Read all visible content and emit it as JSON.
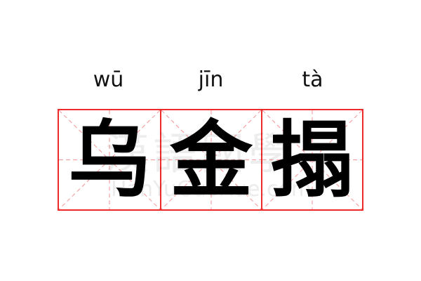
{
  "word": [
    {
      "pinyin": "wū",
      "hanzi": "乌"
    },
    {
      "pinyin": "jīn",
      "hanzi": "金"
    },
    {
      "pinyin": "tà",
      "hanzi": "搨"
    }
  ],
  "watermark": {
    "chinese": "漢語國學",
    "latin": "HanYuGuoXue.com"
  },
  "colors": {
    "grid_border": "#ee2a2a",
    "guide_lines": "#f4a0a0",
    "text": "#000000"
  }
}
